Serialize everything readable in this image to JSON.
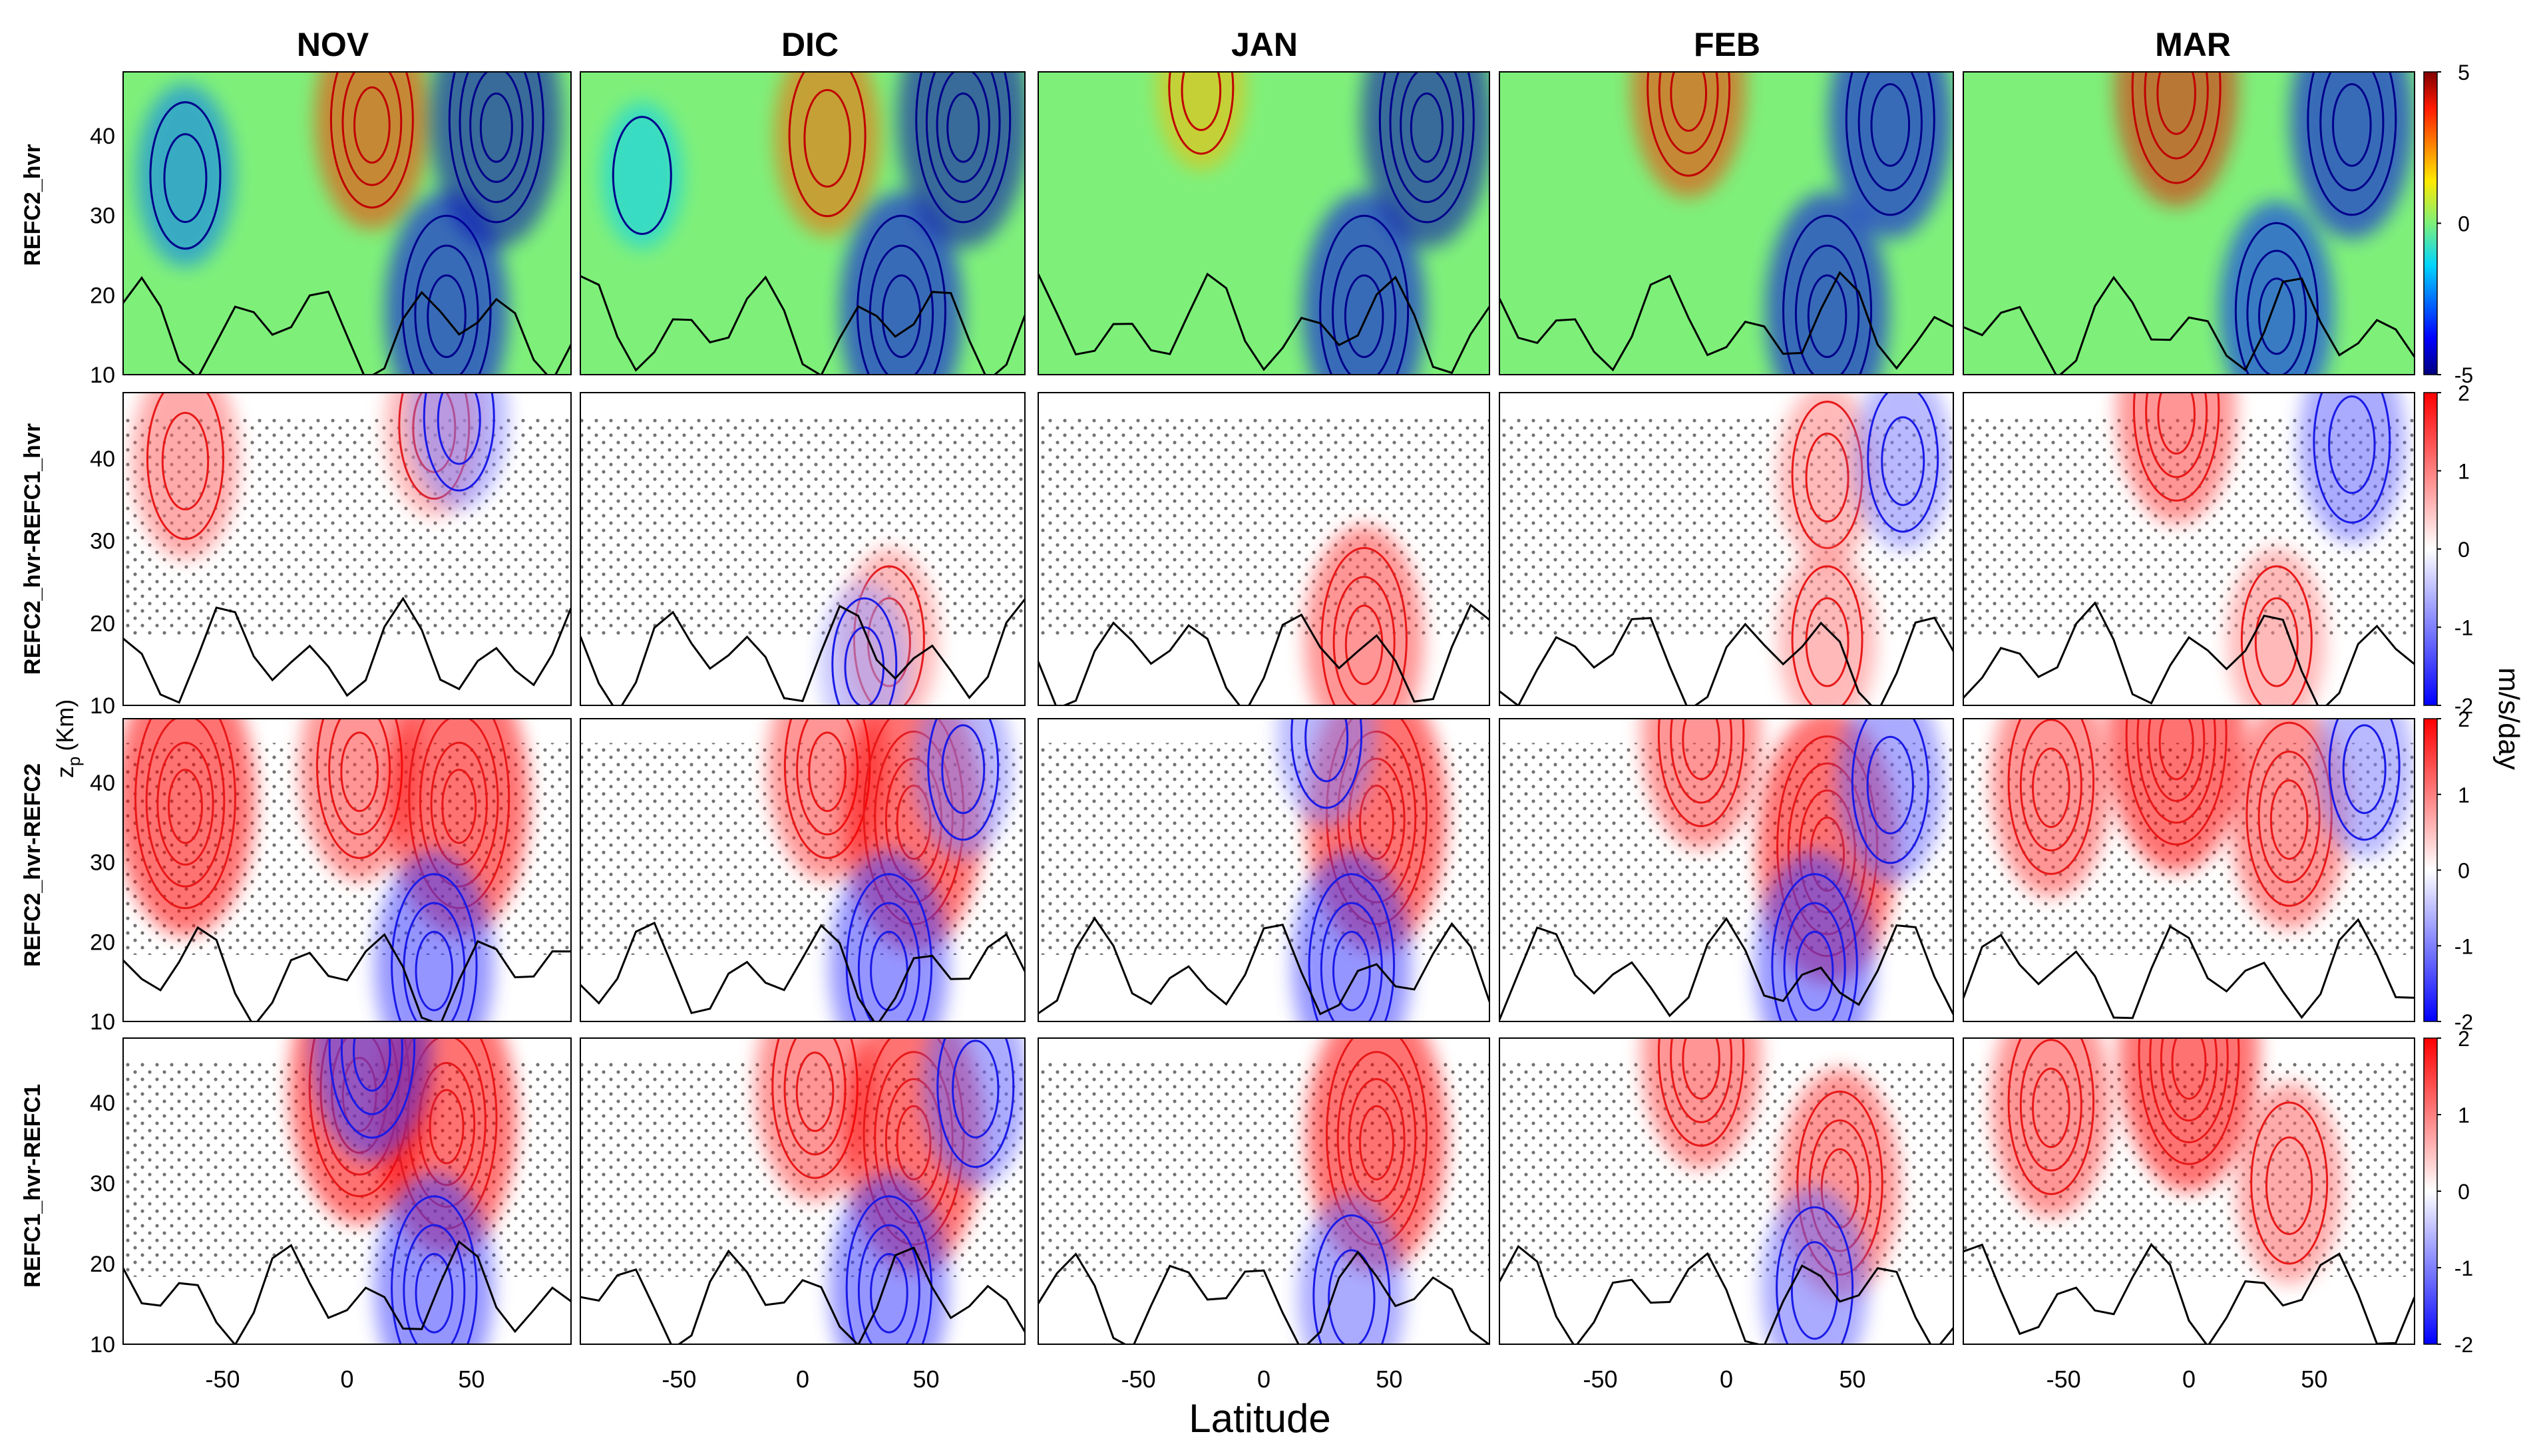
{
  "figure": {
    "columns": [
      "NOV",
      "DIC",
      "JAN",
      "FEB",
      "MAR"
    ],
    "rows": [
      "REFC2_hvr",
      "REFC2_hvr-REFC1_hvr",
      "REFC2_hvr-REFC2",
      "REFC1_hvr-REFC1"
    ],
    "shared_ylabel": "z_p (Km)",
    "ylabel_main": "z",
    "ylabel_sub": "p",
    "ylabel_unit": "(Km)",
    "xlabel": "Latitude",
    "x_ticks": [
      "-50",
      "0",
      "50"
    ],
    "y_ticks": [
      "10",
      "20",
      "30",
      "40"
    ],
    "colorbar_unit": "m/s/day",
    "colorbars": [
      {
        "ticks": [
          "5",
          "0",
          "-5"
        ],
        "range": [
          -5,
          5
        ],
        "colormap": "jet"
      },
      {
        "ticks": [
          "2",
          "1",
          "0",
          "-1",
          "-2"
        ],
        "range": [
          -2,
          2
        ],
        "colormap": "blue-white-red"
      },
      {
        "ticks": [
          "2",
          "1",
          "0",
          "-1",
          "-2"
        ],
        "range": [
          -2,
          2
        ],
        "colormap": "blue-white-red"
      },
      {
        "ticks": [
          "2",
          "1",
          "0",
          "-1",
          "-2"
        ],
        "range": [
          -2,
          2
        ],
        "colormap": "blue-white-red"
      }
    ],
    "colors": {
      "jet_background": "#7ef07a",
      "red": "#e81818",
      "blue": "#1a1ae6",
      "contour_black": "#000000"
    }
  },
  "chart_data": {
    "type": "heatmap",
    "description_units": "zonal-mean forcing in m/s/day; x = latitude (deg), y = log-pressure height z_p (km)",
    "xlim": [
      -90,
      90
    ],
    "ylim": [
      10,
      48
    ],
    "rows": [
      {
        "name": "REFC2_hvr",
        "clim": [
          -5,
          5
        ],
        "features": {
          "NOV": [
            {
              "lat": -65,
              "z": 35,
              "value": -2.5
            },
            {
              "lat": 10,
              "z": 42,
              "value": 3.5
            },
            {
              "lat": 40,
              "z": 18,
              "value": -4
            },
            {
              "lat": 60,
              "z": 42,
              "value": -4.5
            }
          ],
          "DIC": [
            {
              "lat": -65,
              "z": 35,
              "value": -1.5
            },
            {
              "lat": 10,
              "z": 40,
              "value": 3
            },
            {
              "lat": 40,
              "z": 18,
              "value": -4
            },
            {
              "lat": 65,
              "z": 42,
              "value": -4.5
            }
          ],
          "JAN": [
            {
              "lat": -25,
              "z": 46,
              "value": 2
            },
            {
              "lat": 40,
              "z": 18,
              "value": -4
            },
            {
              "lat": 65,
              "z": 42,
              "value": -4.5
            }
          ],
          "FEB": [
            {
              "lat": -15,
              "z": 46,
              "value": 3.5
            },
            {
              "lat": 40,
              "z": 18,
              "value": -4
            },
            {
              "lat": 65,
              "z": 42,
              "value": -4
            }
          ],
          "MAR": [
            {
              "lat": -5,
              "z": 46,
              "value": 4
            },
            {
              "lat": 35,
              "z": 18,
              "value": -3.5
            },
            {
              "lat": 65,
              "z": 42,
              "value": -4
            }
          ]
        }
      },
      {
        "name": "REFC2_hvr-REFC1_hvr",
        "clim": [
          -2,
          2
        ],
        "features": {
          "NOV": [
            {
              "lat": -65,
              "z": 40,
              "value": 1.2
            },
            {
              "lat": 35,
              "z": 44,
              "value": 1
            },
            {
              "lat": 45,
              "z": 45,
              "value": -1
            }
          ],
          "DIC": [
            {
              "lat": 35,
              "z": 18,
              "value": 1
            },
            {
              "lat": 25,
              "z": 15,
              "value": -0.8
            }
          ],
          "JAN": [
            {
              "lat": 40,
              "z": 18,
              "value": 1.5
            }
          ],
          "FEB": [
            {
              "lat": 40,
              "z": 38,
              "value": 1
            },
            {
              "lat": 40,
              "z": 18,
              "value": 1
            },
            {
              "lat": 70,
              "z": 40,
              "value": -1
            }
          ],
          "MAR": [
            {
              "lat": -5,
              "z": 46,
              "value": 1.5
            },
            {
              "lat": 35,
              "z": 18,
              "value": 1
            },
            {
              "lat": 65,
              "z": 42,
              "value": -1.2
            }
          ]
        }
      },
      {
        "name": "REFC2_hvr-REFC2",
        "clim": [
          -2,
          2
        ],
        "features": {
          "NOV": [
            {
              "lat": -65,
              "z": 38,
              "value": 2
            },
            {
              "lat": 5,
              "z": 42,
              "value": 1.5
            },
            {
              "lat": 45,
              "z": 38,
              "value": 2
            },
            {
              "lat": 35,
              "z": 17,
              "value": -1.5
            }
          ],
          "DIC": [
            {
              "lat": 10,
              "z": 42,
              "value": 1.5
            },
            {
              "lat": 45,
              "z": 36,
              "value": 2
            },
            {
              "lat": 35,
              "z": 17,
              "value": -1.5
            },
            {
              "lat": 65,
              "z": 42,
              "value": -1
            }
          ],
          "JAN": [
            {
              "lat": 45,
              "z": 36,
              "value": 2
            },
            {
              "lat": 35,
              "z": 17,
              "value": -1.5
            },
            {
              "lat": 25,
              "z": 46,
              "value": -1
            }
          ],
          "FEB": [
            {
              "lat": -10,
              "z": 46,
              "value": 1.5
            },
            {
              "lat": 40,
              "z": 32,
              "value": 2
            },
            {
              "lat": 35,
              "z": 17,
              "value": -1.5
            },
            {
              "lat": 65,
              "z": 40,
              "value": -1.2
            }
          ],
          "MAR": [
            {
              "lat": -5,
              "z": 46,
              "value": 2
            },
            {
              "lat": -55,
              "z": 40,
              "value": 1.5
            },
            {
              "lat": 40,
              "z": 36,
              "value": 1.5
            },
            {
              "lat": 70,
              "z": 42,
              "value": -1
            }
          ]
        }
      },
      {
        "name": "REFC1_hvr-REFC1",
        "clim": [
          -2,
          2
        ],
        "features": {
          "NOV": [
            {
              "lat": 5,
              "z": 42,
              "value": 2
            },
            {
              "lat": 40,
              "z": 38,
              "value": 2
            },
            {
              "lat": 35,
              "z": 17,
              "value": -1.5
            },
            {
              "lat": 10,
              "z": 47,
              "value": -1.5
            }
          ],
          "DIC": [
            {
              "lat": 5,
              "z": 42,
              "value": 1.5
            },
            {
              "lat": 45,
              "z": 36,
              "value": 2
            },
            {
              "lat": 35,
              "z": 17,
              "value": -1.5
            },
            {
              "lat": 70,
              "z": 42,
              "value": -1.2
            }
          ],
          "JAN": [
            {
              "lat": 45,
              "z": 36,
              "value": 2
            },
            {
              "lat": 35,
              "z": 16,
              "value": -1.2
            }
          ],
          "FEB": [
            {
              "lat": -10,
              "z": 46,
              "value": 1.5
            },
            {
              "lat": 45,
              "z": 30,
              "value": 1.5
            },
            {
              "lat": 35,
              "z": 17,
              "value": -1.2
            }
          ],
          "MAR": [
            {
              "lat": 0,
              "z": 46,
              "value": 2
            },
            {
              "lat": -55,
              "z": 40,
              "value": 1.5
            },
            {
              "lat": 40,
              "z": 30,
              "value": 1.2
            }
          ]
        }
      }
    ]
  }
}
